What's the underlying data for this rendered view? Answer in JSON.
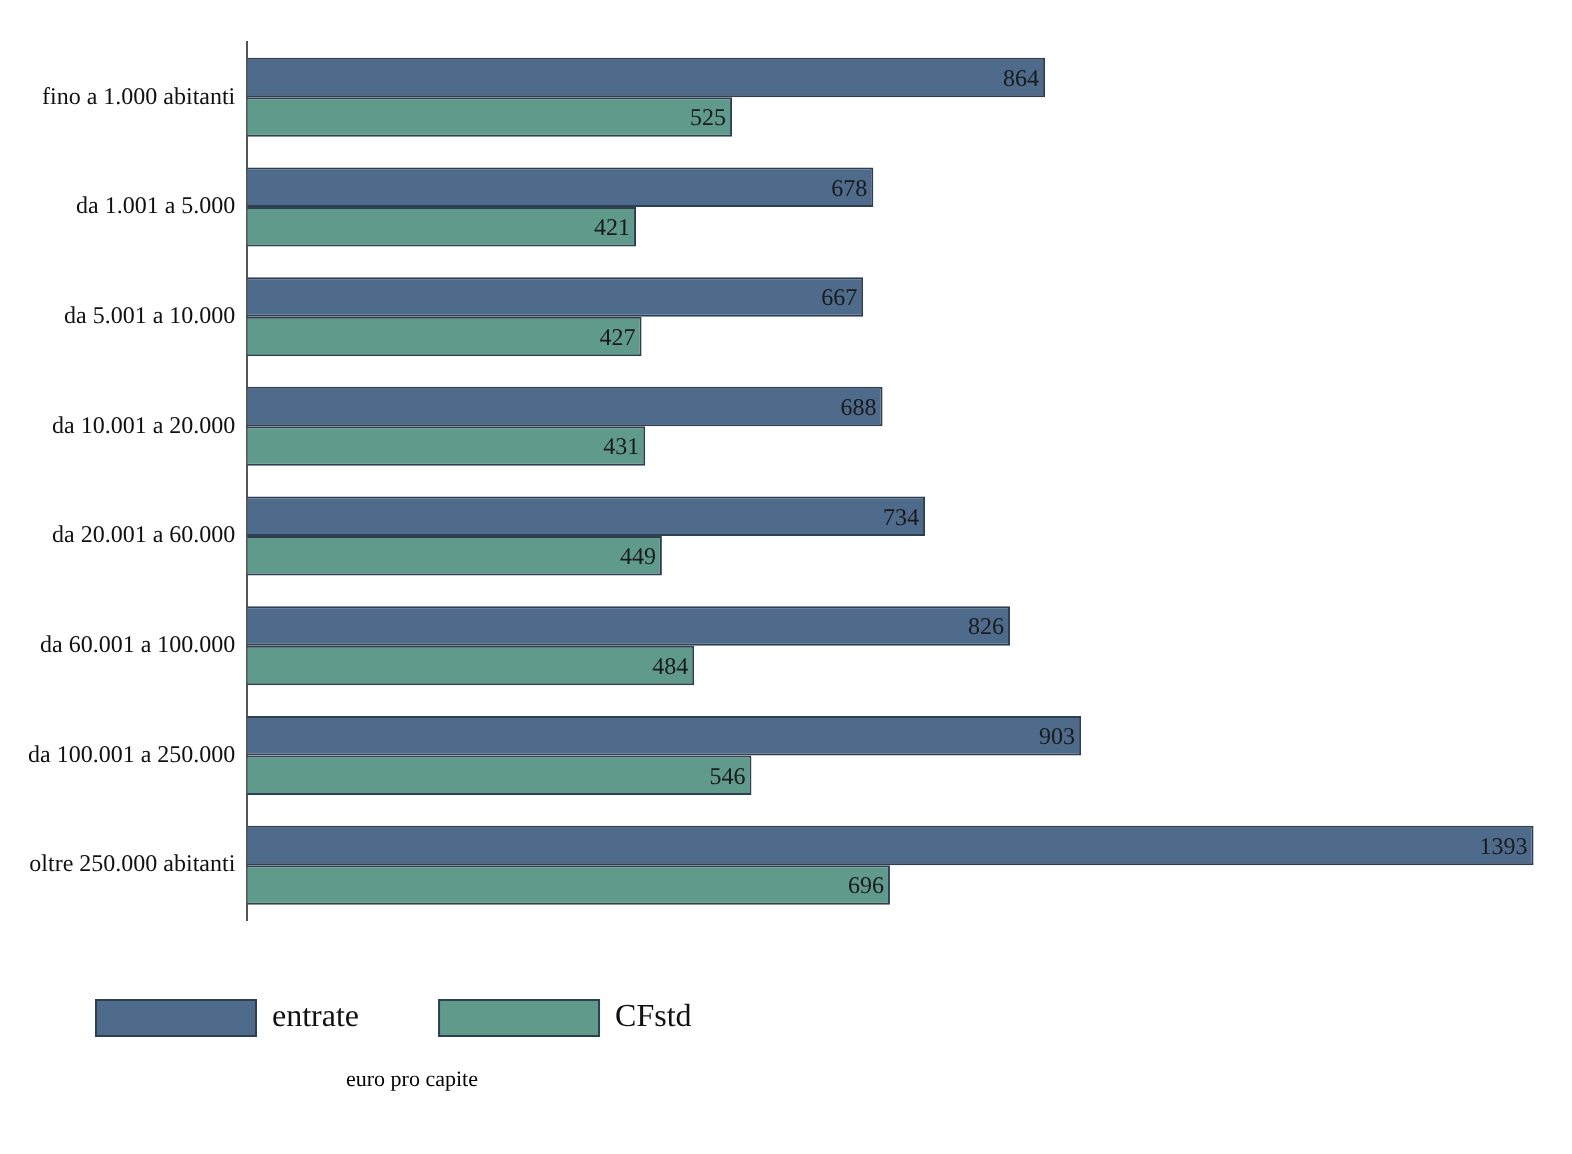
{
  "chart_data": {
    "type": "bar",
    "orientation": "horizontal",
    "categories": [
      "fino a 1.000 abitanti",
      "da 1.001 a 5.000",
      "da 5.001 a 10.000",
      "da 10.001 a 20.000",
      "da 20.001 a 60.000",
      "da 60.001 a 100.000",
      "da 100.001 a 250.000",
      "oltre 250.000 abitanti"
    ],
    "series": [
      {
        "name": "entrate",
        "color": "#4e6b8c",
        "values": [
          864,
          678,
          667,
          688,
          734,
          826,
          903,
          1393
        ]
      },
      {
        "name": "CFstd",
        "color": "#5f9a8b",
        "values": [
          525,
          421,
          427,
          431,
          449,
          484,
          546,
          696
        ]
      }
    ],
    "data_labels": true,
    "legend": "bottom left",
    "grid": false,
    "annotations": [
      "euro pro capite"
    ]
  }
}
